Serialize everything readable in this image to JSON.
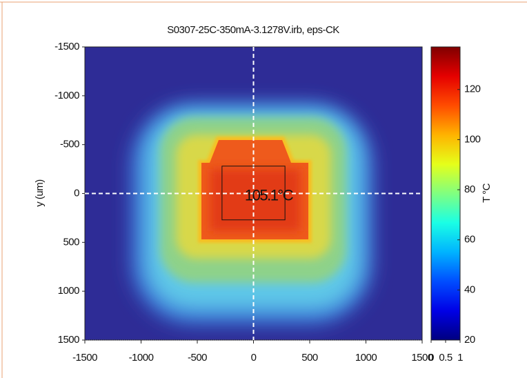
{
  "chart_data": {
    "type": "heatmap",
    "title": "S0307-25C-350mA-3.1278V.irb, eps-CK",
    "ylabel": "y (um)",
    "colorbar_label": "T °C",
    "annotation": "105.1°C",
    "colormap": "jet",
    "xlim": [
      -1500,
      1500
    ],
    "xticks": [
      -1500,
      -1000,
      -500,
      0,
      500,
      1000,
      1500
    ],
    "ylim": [
      -1500,
      1500
    ],
    "y_inverted": true,
    "yticks": [
      -1500,
      -1000,
      -500,
      0,
      500,
      1000,
      1500
    ],
    "crosshair": [
      0,
      0
    ],
    "roi": {
      "x": [
        -280,
        280
      ],
      "y": [
        -280,
        270
      ]
    },
    "clim": [
      20,
      137
    ],
    "cticks": [
      20,
      40,
      60,
      80,
      100,
      120
    ],
    "cbar_xlim": [
      0,
      1
    ],
    "cbar_xticks": [
      0,
      0.5,
      1
    ]
  }
}
